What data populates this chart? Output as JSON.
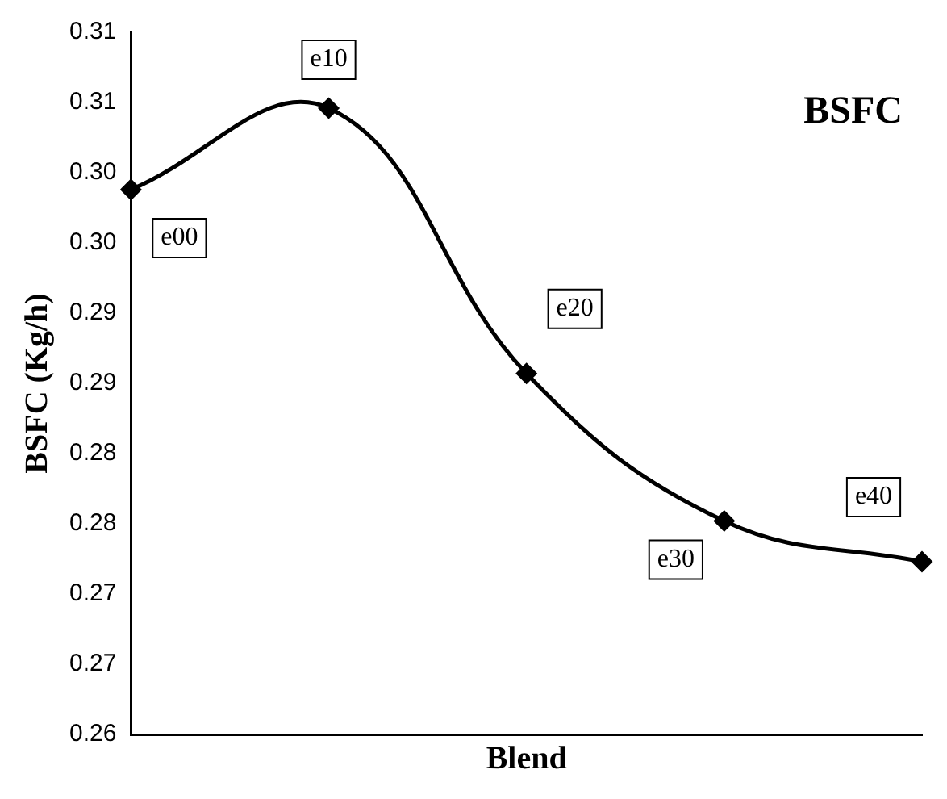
{
  "chart_data": {
    "type": "line",
    "title": "BSFC",
    "xlabel": "Blend",
    "ylabel": "BSFC (Kg/h)",
    "categories": [
      "e00",
      "e10",
      "e20",
      "e30",
      "e40"
    ],
    "series": [
      {
        "color": "#000000",
        "values": [
          0.2988,
          0.3046,
          0.2857,
          0.2752,
          0.2723
        ]
      }
    ],
    "ylim": [
      0.26,
      0.31
    ],
    "yticks": [
      {
        "value": 0.26,
        "label": "0.26"
      },
      {
        "value": 0.265,
        "label": "0.27"
      },
      {
        "value": 0.27,
        "label": "0.27"
      },
      {
        "value": 0.275,
        "label": "0.28"
      },
      {
        "value": 0.28,
        "label": "0.28"
      },
      {
        "value": 0.285,
        "label": "0.29"
      },
      {
        "value": 0.29,
        "label": "0.29"
      },
      {
        "value": 0.295,
        "label": "0.30"
      },
      {
        "value": 0.3,
        "label": "0.30"
      },
      {
        "value": 0.305,
        "label": "0.31"
      },
      {
        "value": 0.31,
        "label": "0.31"
      }
    ],
    "tick_labels": "y",
    "grid": false,
    "legend": false,
    "marker": "diamond",
    "line_style": "solid"
  }
}
